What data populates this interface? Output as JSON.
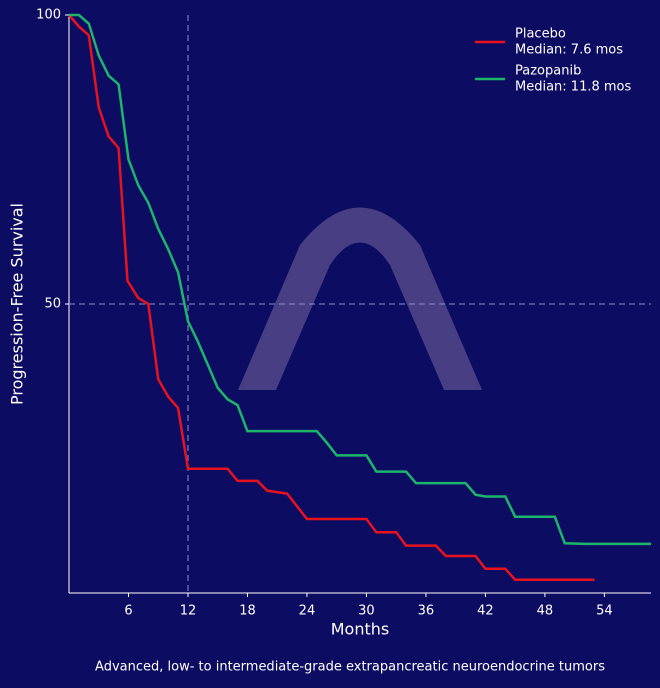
{
  "chart_data": {
    "type": "line",
    "caption": "Advanced, low- to intermediate-grade extrapancreatic neuroendocrine tumors",
    "x_label": "Months",
    "y_label": "Progression-Free Survival",
    "xlim": [
      0,
      58.7
    ],
    "ylim": [
      0,
      100
    ],
    "xticks": [
      6,
      12,
      18,
      24,
      30,
      36,
      42,
      48,
      54
    ],
    "yticks": [
      50,
      100
    ],
    "ref_x": [
      12
    ],
    "ref_y": [
      50
    ],
    "legend": "upper right",
    "series": [
      {
        "name": "Placebo",
        "median_label": "Median: 7.6 mos",
        "color": "#e8121f",
        "x": [
          0,
          1,
          2,
          3,
          4,
          5,
          5.9,
          7,
          8,
          9,
          10,
          11,
          12,
          16,
          17,
          19,
          20,
          22,
          24,
          30,
          31,
          33,
          34,
          37,
          38,
          41,
          42,
          44,
          45,
          53
        ],
        "values": [
          100,
          98,
          96.5,
          84,
          79,
          77,
          54,
          51,
          50,
          37,
          34,
          32,
          21.5,
          21.5,
          19.4,
          19.4,
          17.7,
          17.2,
          12.8,
          12.8,
          10.5,
          10.5,
          8.2,
          8.2,
          6.4,
          6.4,
          4.2,
          4.2,
          2.3,
          2.3
        ]
      },
      {
        "name": "Pazopanib",
        "median_label": "Median: 11.8 mos",
        "color": "#1db56c",
        "x": [
          0,
          1,
          2,
          3,
          4,
          5,
          6,
          7,
          8,
          9,
          10,
          11,
          12,
          13,
          14,
          15,
          16,
          17,
          18,
          25,
          26,
          27,
          30,
          31,
          34,
          35,
          40,
          41,
          42,
          44,
          45,
          49,
          50,
          52,
          58.7
        ],
        "values": [
          100,
          100,
          98.5,
          93,
          89.5,
          88,
          75,
          70.5,
          67.5,
          63,
          59.5,
          55.5,
          47,
          43.5,
          39.5,
          35.5,
          33.5,
          32.5,
          28,
          28,
          26,
          23.8,
          23.8,
          21,
          21,
          19,
          19,
          17,
          16.7,
          16.7,
          13.2,
          13.2,
          8.6,
          8.5,
          8.5
        ]
      }
    ]
  }
}
